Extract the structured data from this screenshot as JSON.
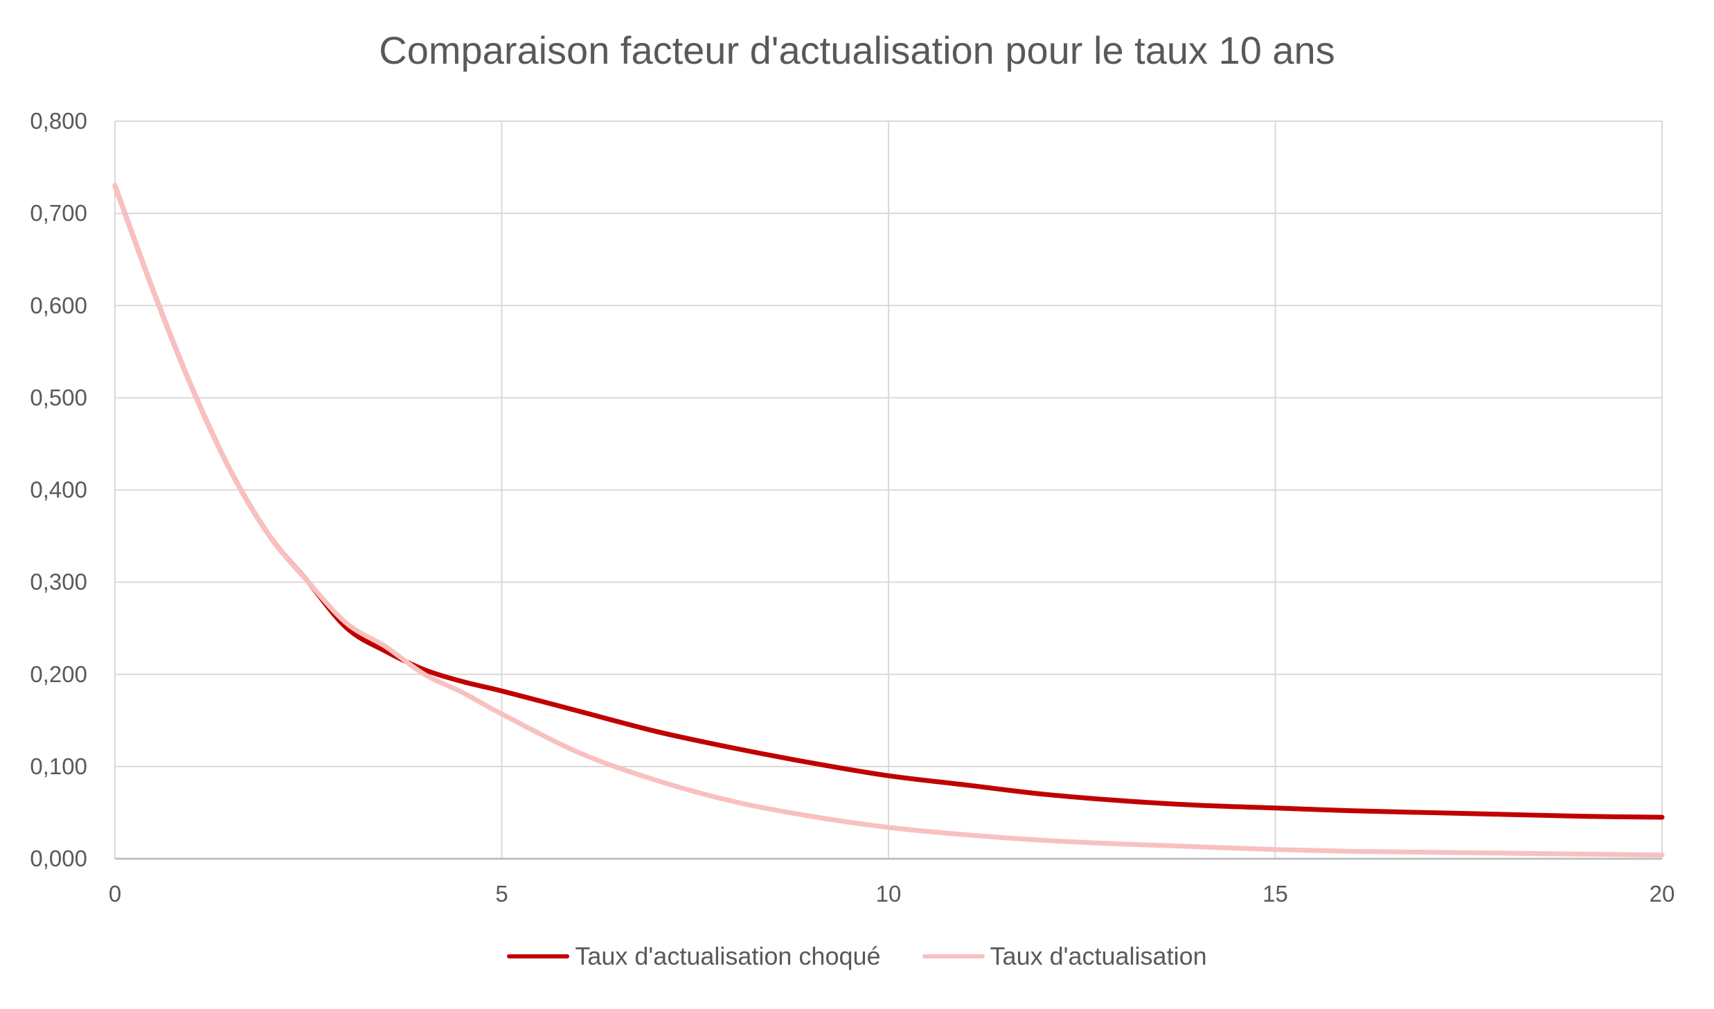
{
  "chart_data": {
    "type": "line",
    "title": "Comparaison facteur d'actualisation pour le taux 10 ans",
    "xlabel": "",
    "ylabel": "",
    "xlim": [
      0,
      20
    ],
    "ylim": [
      0,
      0.8
    ],
    "x_ticks": [
      "0",
      "5",
      "10",
      "15",
      "20"
    ],
    "y_ticks": [
      "0,000",
      "0,100",
      "0,200",
      "0,300",
      "0,400",
      "0,500",
      "0,600",
      "0,700",
      "0,800"
    ],
    "grid": true,
    "legend_position": "bottom",
    "x": [
      0,
      0.5,
      1,
      1.5,
      2,
      2.5,
      3,
      3.5,
      4,
      4.5,
      5,
      6,
      7,
      8,
      9,
      10,
      11,
      12,
      13,
      14,
      15,
      16,
      17,
      18,
      19,
      20
    ],
    "series": [
      {
        "name": "Taux d'actualisation choqué",
        "color": "#C00000",
        "values": [
          0.73,
          0.615,
          0.51,
          0.42,
          0.35,
          0.3,
          0.25,
          0.225,
          0.205,
          0.192,
          0.182,
          0.16,
          0.138,
          0.12,
          0.104,
          0.09,
          0.08,
          0.07,
          0.063,
          0.058,
          0.055,
          0.052,
          0.05,
          0.048,
          0.046,
          0.045
        ]
      },
      {
        "name": "Taux d'actualisation",
        "color": "#F9C0C0",
        "values": [
          0.73,
          0.615,
          0.51,
          0.42,
          0.35,
          0.3,
          0.255,
          0.23,
          0.2,
          0.18,
          0.157,
          0.115,
          0.085,
          0.062,
          0.046,
          0.034,
          0.026,
          0.02,
          0.016,
          0.013,
          0.01,
          0.008,
          0.007,
          0.006,
          0.005,
          0.004
        ]
      }
    ]
  }
}
